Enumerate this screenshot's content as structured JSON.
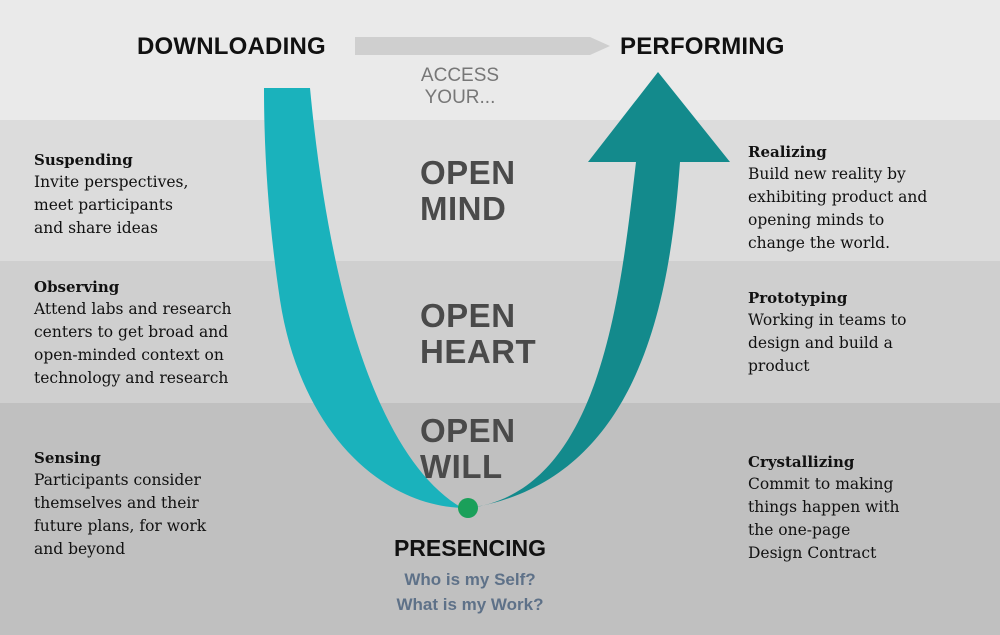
{
  "header": {
    "left_label": "DOWNLOADING",
    "right_label": "PERFORMING",
    "access_line1": "ACCESS",
    "access_line2": "YOUR..."
  },
  "levels": {
    "mind": {
      "line1": "OPEN",
      "line2": "MIND"
    },
    "heart": {
      "line1": "OPEN",
      "line2": "HEART"
    },
    "will": {
      "line1": "OPEN",
      "line2": "WILL"
    }
  },
  "left_steps": [
    {
      "title": "Suspending",
      "body": "Invite  perspectives,\nmeet participants\nand share ideas"
    },
    {
      "title": "Observing",
      "body": "Attend labs and research\ncenters to get broad and\nopen-minded context on\ntechnology and research"
    },
    {
      "title": "Sensing",
      "body": "Participants consider\nthemselves and their\nfuture plans, for work\nand beyond"
    }
  ],
  "right_steps": [
    {
      "title": "Realizing",
      "body": "Build new reality by\nexhibiting product and\nopening minds to\nchange the world."
    },
    {
      "title": "Prototyping",
      "body": "Working in teams to\ndesign and build a\nproduct"
    },
    {
      "title": "Crystallizing",
      "body": "Commit to making\nthings happen with\nthe one-page\nDesign Contract"
    }
  ],
  "bottom": {
    "label": "PRESENCING",
    "question1": "Who is my Self?",
    "question2": "What is my Work?"
  },
  "colors": {
    "left_arm": "#1ab2bc",
    "right_arm": "#138a8c",
    "center_dot": "#1aa05a",
    "question_text": "#5e7188"
  }
}
